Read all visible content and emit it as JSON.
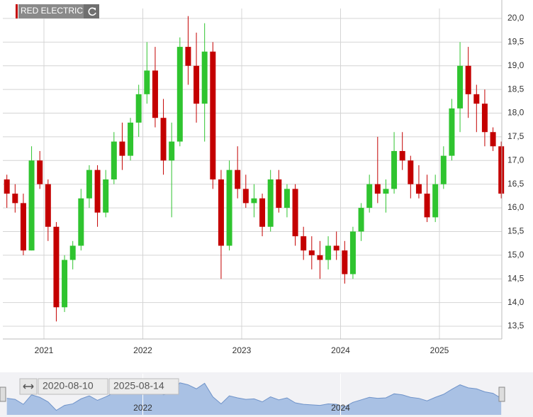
{
  "chart_data": {
    "type": "candlestick",
    "title": "RED ELECTRIC",
    "x": [
      "2020-08",
      "2020-09",
      "2020-10",
      "2020-11",
      "2020-12",
      "2021-01",
      "2021-02",
      "2021-03",
      "2021-04",
      "2021-05",
      "2021-06",
      "2021-07",
      "2021-08",
      "2021-09",
      "2021-10",
      "2021-11",
      "2021-12",
      "2022-01",
      "2022-02",
      "2022-03",
      "2022-04",
      "2022-05",
      "2022-06",
      "2022-07",
      "2022-08",
      "2022-09",
      "2022-10",
      "2022-11",
      "2022-12",
      "2023-01",
      "2023-02",
      "2023-03",
      "2023-04",
      "2023-05",
      "2023-06",
      "2023-07",
      "2023-08",
      "2023-09",
      "2023-10",
      "2023-11",
      "2023-12",
      "2024-01",
      "2024-02",
      "2024-03",
      "2024-04",
      "2024-05",
      "2024-06",
      "2024-07",
      "2024-08",
      "2024-09",
      "2024-10",
      "2024-11",
      "2024-12",
      "2025-01",
      "2025-02",
      "2025-03",
      "2025-04",
      "2025-05",
      "2025-06",
      "2025-07",
      "2025-08"
    ],
    "open": [
      16.6,
      16.3,
      16.1,
      15.1,
      17.0,
      16.5,
      15.6,
      13.9,
      14.9,
      15.2,
      16.2,
      16.8,
      15.9,
      16.6,
      17.4,
      17.1,
      17.8,
      18.4,
      18.9,
      17.9,
      17.0,
      17.4,
      19.4,
      19.0,
      18.2,
      19.3,
      16.6,
      15.2,
      16.8,
      16.4,
      16.1,
      16.2,
      15.6,
      16.6,
      16.0,
      16.4,
      15.4,
      15.1,
      15.0,
      14.9,
      15.2,
      15.1,
      14.6,
      15.5,
      16.0,
      16.5,
      16.3,
      16.4,
      17.2,
      17.0,
      16.5,
      16.3,
      15.8,
      16.5,
      17.1,
      18.1,
      19.0,
      18.4,
      18.2,
      17.6,
      17.3
    ],
    "high": [
      16.7,
      16.5,
      16.3,
      17.3,
      17.2,
      16.6,
      15.7,
      15.0,
      15.3,
      16.4,
      16.9,
      16.9,
      16.8,
      17.6,
      17.8,
      17.9,
      18.6,
      19.5,
      19.4,
      18.3,
      17.8,
      19.6,
      20.05,
      19.7,
      19.9,
      19.5,
      16.8,
      17.0,
      17.3,
      16.7,
      16.5,
      16.3,
      16.8,
      16.8,
      16.5,
      16.5,
      15.6,
      15.4,
      15.3,
      15.4,
      15.5,
      15.3,
      15.6,
      16.1,
      16.7,
      17.5,
      16.6,
      17.6,
      17.6,
      17.1,
      16.9,
      16.7,
      16.7,
      17.3,
      18.3,
      19.5,
      19.4,
      18.6,
      18.5,
      17.7,
      17.4
    ],
    "low": [
      16.0,
      15.9,
      15.0,
      15.1,
      16.4,
      15.3,
      13.6,
      13.8,
      14.7,
      15.1,
      16.0,
      15.6,
      15.8,
      16.5,
      16.8,
      17.0,
      17.5,
      18.2,
      17.7,
      16.7,
      15.8,
      17.3,
      18.6,
      17.8,
      17.4,
      16.4,
      14.5,
      15.1,
      16.2,
      16.0,
      15.8,
      15.4,
      15.5,
      15.9,
      15.8,
      15.2,
      14.9,
      14.7,
      14.5,
      14.7,
      14.9,
      14.4,
      14.5,
      15.3,
      15.9,
      16.1,
      15.9,
      16.3,
      16.8,
      16.2,
      16.2,
      15.7,
      15.7,
      16.4,
      17.0,
      17.6,
      17.9,
      17.6,
      17.3,
      17.2,
      16.2
    ],
    "close": [
      16.3,
      16.1,
      15.1,
      17.0,
      16.5,
      15.6,
      13.9,
      14.9,
      15.2,
      16.2,
      16.8,
      15.9,
      16.6,
      17.4,
      17.1,
      17.8,
      18.4,
      18.9,
      17.9,
      17.0,
      17.4,
      19.4,
      19.0,
      18.2,
      19.3,
      16.6,
      15.2,
      16.8,
      16.4,
      16.1,
      16.2,
      15.6,
      16.6,
      16.0,
      16.4,
      15.4,
      15.1,
      15.0,
      14.9,
      15.2,
      15.1,
      14.6,
      15.5,
      16.0,
      16.5,
      16.3,
      16.4,
      17.2,
      17.0,
      16.5,
      16.3,
      15.8,
      16.5,
      17.1,
      18.1,
      19.0,
      18.4,
      18.2,
      17.6,
      17.3,
      16.3
    ],
    "up_color": "#2fc42f",
    "down_color": "#c40000",
    "ylim": [
      13.23,
      20.21
    ],
    "yticks": [
      {
        "value": 13.5,
        "label": "13,5"
      },
      {
        "value": 14,
        "label": "14,0"
      },
      {
        "value": 14.5,
        "label": "14,5"
      },
      {
        "value": 15,
        "label": "15,0"
      },
      {
        "value": 15.5,
        "label": "15,5"
      },
      {
        "value": 16,
        "label": "16,0"
      },
      {
        "value": 16.5,
        "label": "16,5"
      },
      {
        "value": 17,
        "label": "17,0"
      },
      {
        "value": 17.5,
        "label": "17,5"
      },
      {
        "value": 18,
        "label": "18,0"
      },
      {
        "value": 18.5,
        "label": "18,5"
      },
      {
        "value": 19,
        "label": "19,0"
      },
      {
        "value": 19.5,
        "label": "19,5"
      },
      {
        "value": 20,
        "label": "20,0"
      }
    ],
    "xticks": [
      {
        "value": "2021-01",
        "label": "2021"
      },
      {
        "value": "2022-01",
        "label": "2022"
      },
      {
        "value": "2023-01",
        "label": "2023"
      },
      {
        "value": "2024-01",
        "label": "2024"
      },
      {
        "value": "2025-01",
        "label": "2025"
      }
    ],
    "grid": true,
    "navigator": {
      "start": "2020-08-10",
      "end": "2025-08-14",
      "xticks": [
        {
          "value": "2022-01",
          "label": "2022"
        },
        {
          "value": "2024-01",
          "label": "2024"
        }
      ]
    }
  }
}
